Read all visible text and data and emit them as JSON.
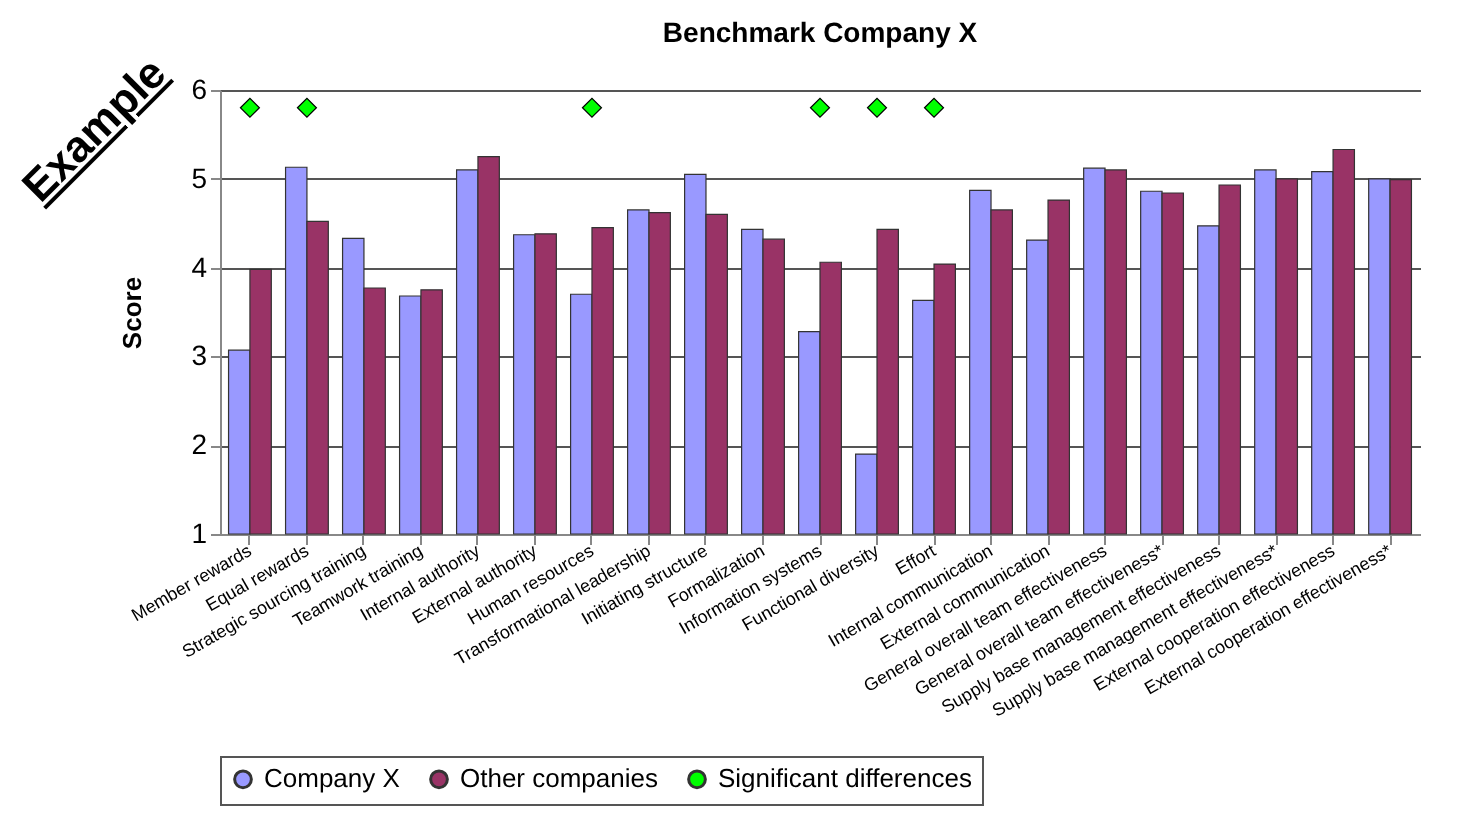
{
  "chart_data": {
    "type": "bar",
    "title": "Benchmark Company X",
    "ylabel": "Score",
    "annotations": [
      "Example"
    ],
    "categories": [
      "Member rewards",
      "Equal rewards",
      "Strategic sourcing training",
      "Teamwork training",
      "Internal authority",
      "External authority",
      "Human resources",
      "Transformational leadership",
      "Initiating structure",
      "Formalization",
      "Information systems",
      "Functional diversity",
      "Effort",
      "Internal communication",
      "External communication",
      "General overall team effectiveness",
      "General overall team effectiveness*",
      "Supply base management effectiveness",
      "Supply base management effectiveness*",
      "External cooperation effectiveness",
      "External cooperation effectiveness*"
    ],
    "series": [
      {
        "name": "Company X",
        "color": "#9999ff",
        "values": [
          3.07,
          5.13,
          4.33,
          3.68,
          5.1,
          4.37,
          3.7,
          4.65,
          5.05,
          4.43,
          3.28,
          1.9,
          3.63,
          4.87,
          4.31,
          5.12,
          4.86,
          4.47,
          5.1,
          5.08,
          5.0
        ]
      },
      {
        "name": "Other companies",
        "color": "#993366",
        "values": [
          3.98,
          4.52,
          3.77,
          3.75,
          5.25,
          4.38,
          4.45,
          4.62,
          4.6,
          4.32,
          4.06,
          4.43,
          4.04,
          4.65,
          4.76,
          5.1,
          4.84,
          4.93,
          5.0,
          5.33,
          4.99
        ]
      },
      {
        "name": "Significant differences",
        "type": "scatter",
        "color": "#00ff00",
        "marker": "diamond",
        "x": [
          "Member rewards",
          "Equal rewards",
          "Human resources",
          "Information systems",
          "Functional diversity",
          "Effort"
        ],
        "values": [
          5.8,
          5.8,
          5.8,
          5.8,
          5.8,
          5.8
        ]
      }
    ],
    "ylim": [
      1,
      6
    ],
    "yticks": [
      1,
      2,
      3,
      4,
      5,
      6
    ],
    "grid": "y",
    "legend": "bottom"
  }
}
